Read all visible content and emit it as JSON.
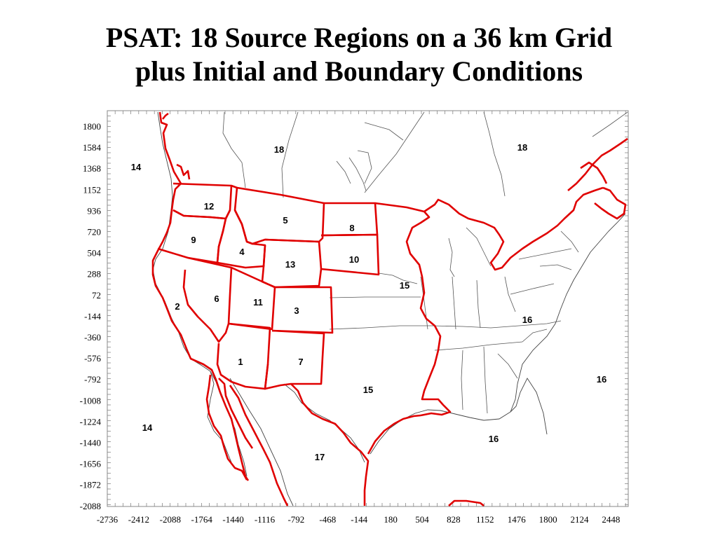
{
  "title": {
    "line1": "PSAT: 18 Source Regions on a 36 km Grid",
    "line2": "plus Initial and Boundary Conditions"
  },
  "axes": {
    "y_ticks": [
      "1800",
      "1584",
      "1368",
      "1152",
      "936",
      "720",
      "504",
      "288",
      "72",
      "-144",
      "-360",
      "-576",
      "-792",
      "-1008",
      "-1224",
      "-1440",
      "-1656",
      "-1872",
      "-2088"
    ],
    "x_ticks": [
      "-2736",
      "-2412",
      "-2088",
      "-1764",
      "-1440",
      "-1116",
      "-792",
      "-468",
      "-144",
      "180",
      "504",
      "828",
      "1152",
      "1476",
      "1800",
      "2124",
      "2448"
    ]
  },
  "regions": [
    {
      "id": "r18a",
      "label": "18"
    },
    {
      "id": "r18b",
      "label": "18"
    },
    {
      "id": "r14a",
      "label": "14"
    },
    {
      "id": "r12",
      "label": "12"
    },
    {
      "id": "r5",
      "label": "5"
    },
    {
      "id": "r8",
      "label": "8"
    },
    {
      "id": "r9",
      "label": "9"
    },
    {
      "id": "r4",
      "label": "4"
    },
    {
      "id": "r10",
      "label": "10"
    },
    {
      "id": "r13",
      "label": "13"
    },
    {
      "id": "r15a",
      "label": "15"
    },
    {
      "id": "r6",
      "label": "6"
    },
    {
      "id": "r11",
      "label": "11"
    },
    {
      "id": "r2",
      "label": "2"
    },
    {
      "id": "r3",
      "label": "3"
    },
    {
      "id": "r16a",
      "label": "16"
    },
    {
      "id": "r1",
      "label": "1"
    },
    {
      "id": "r7",
      "label": "7"
    },
    {
      "id": "r16b",
      "label": "16"
    },
    {
      "id": "r15b",
      "label": "15"
    },
    {
      "id": "r14b",
      "label": "14"
    },
    {
      "id": "r16c",
      "label": "16"
    },
    {
      "id": "r17",
      "label": "17"
    }
  ]
}
